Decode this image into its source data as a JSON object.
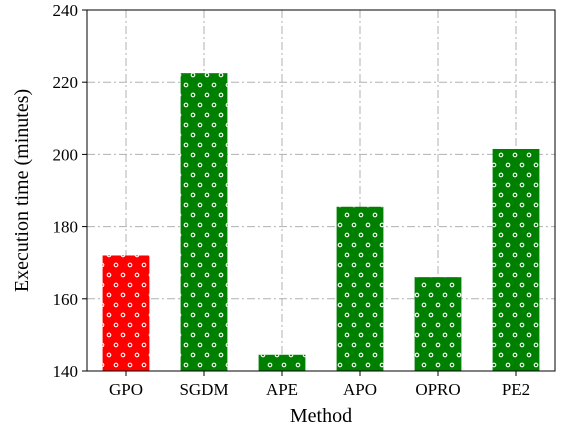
{
  "chart_data": {
    "type": "bar",
    "categories": [
      "GPO",
      "SGDM",
      "APE",
      "APO",
      "OPRO",
      "PE2"
    ],
    "values": [
      172,
      222.5,
      144.5,
      185.5,
      166,
      201.5
    ],
    "bar_colors": [
      "#ff0000",
      "#008000",
      "#008000",
      "#008000",
      "#008000",
      "#008000"
    ],
    "hatch": "small white circles",
    "title": "",
    "xlabel": "Method",
    "ylabel": "Execution time (minutes)",
    "ylim": [
      140,
      240
    ],
    "yticks": [
      140,
      160,
      180,
      200,
      220,
      240
    ],
    "grid": true
  }
}
